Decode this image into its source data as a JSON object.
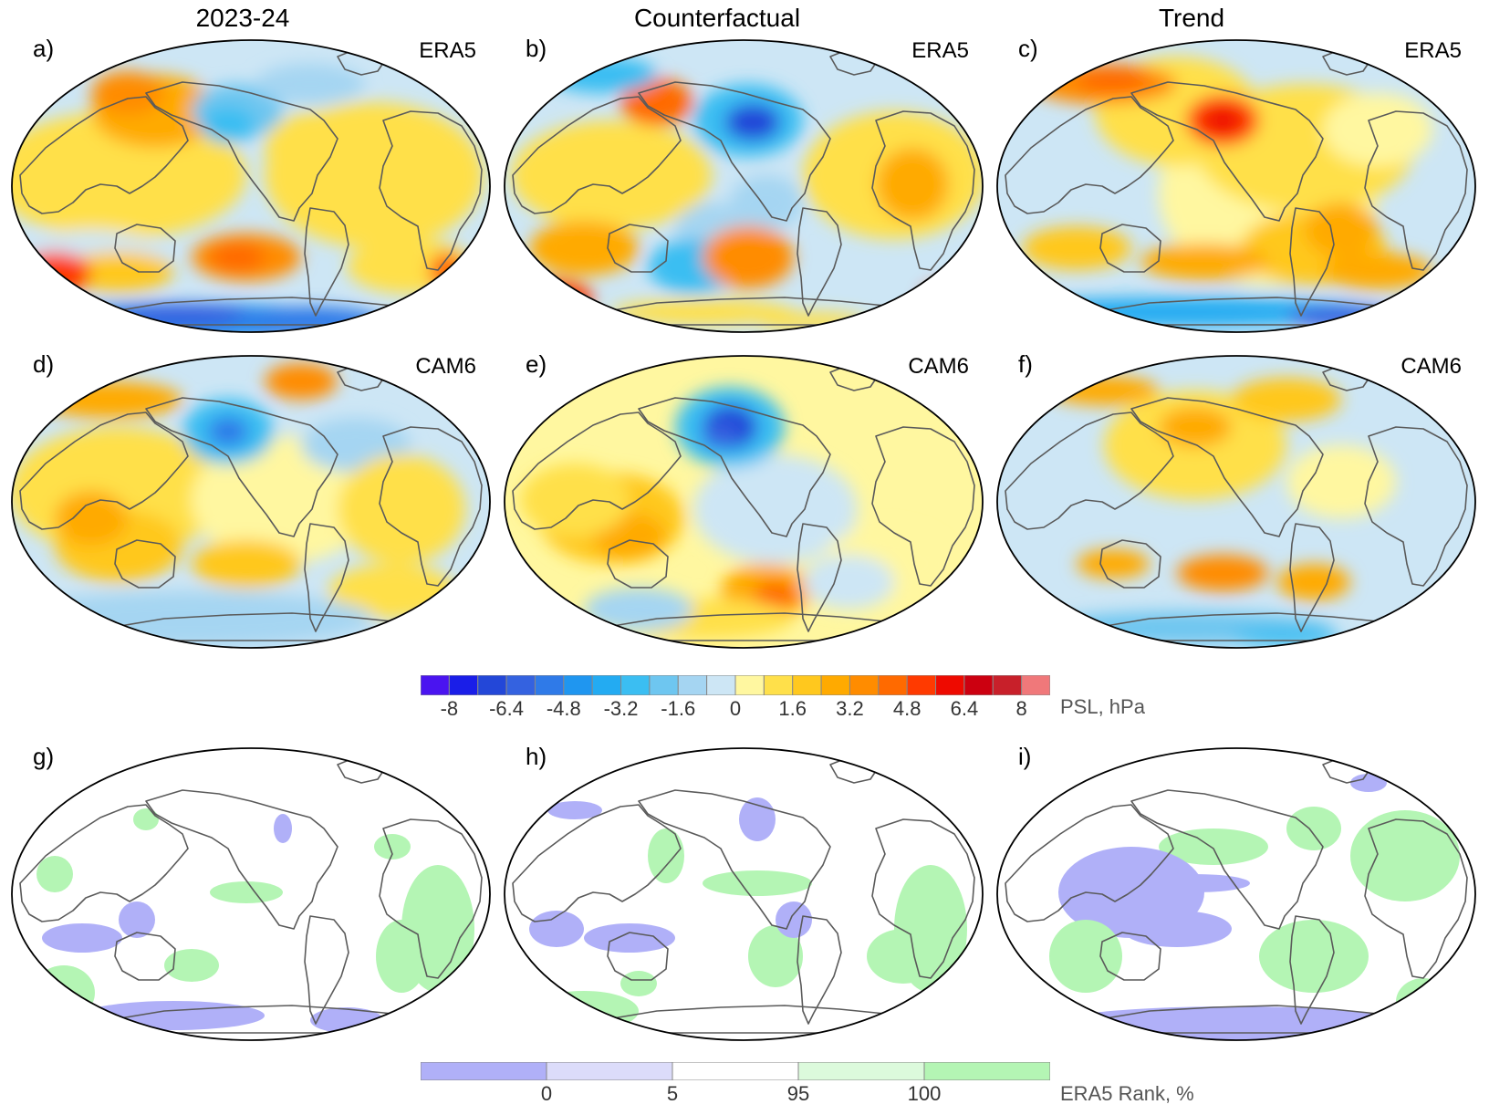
{
  "column_titles": [
    "2023-24",
    "Counterfactual",
    "Trend"
  ],
  "panels": [
    {
      "letter": "a)",
      "source": "ERA5",
      "type": "psl",
      "pattern": "era5-2324"
    },
    {
      "letter": "b)",
      "source": "ERA5",
      "type": "psl",
      "pattern": "era5-cf"
    },
    {
      "letter": "c)",
      "source": "ERA5",
      "type": "psl",
      "pattern": "era5-trend"
    },
    {
      "letter": "d)",
      "source": "CAM6",
      "type": "psl",
      "pattern": "cam6-2324"
    },
    {
      "letter": "e)",
      "source": "CAM6",
      "type": "psl",
      "pattern": "cam6-cf"
    },
    {
      "letter": "f)",
      "source": "CAM6",
      "type": "psl",
      "pattern": "cam6-trend"
    },
    {
      "letter": "g)",
      "source": "",
      "type": "rank",
      "pattern": "rank-2324"
    },
    {
      "letter": "h)",
      "source": "",
      "type": "rank",
      "pattern": "rank-cf"
    },
    {
      "letter": "i)",
      "source": "",
      "type": "rank",
      "pattern": "rank-trend"
    }
  ],
  "psl_colorbar": {
    "title": "PSL, hPa",
    "colors": [
      "#4a14f0",
      "#1a1ee8",
      "#2347d8",
      "#3462e0",
      "#2f7ae8",
      "#1f96f0",
      "#23abf2",
      "#3bbef2",
      "#6ec6f0",
      "#a5d5f2",
      "#cde6f5",
      "#fff7a0",
      "#ffe04a",
      "#ffc81e",
      "#ffaa00",
      "#ff8c00",
      "#ff6a00",
      "#ff3a00",
      "#ee0a00",
      "#cc0010",
      "#c8202a",
      "#f0787a"
    ],
    "tick_labels": [
      "-8",
      "-6.4",
      "-4.8",
      "-3.2",
      "-1.6",
      "0",
      "1.6",
      "3.2",
      "4.8",
      "6.4",
      "8"
    ]
  },
  "rank_colorbar": {
    "title": "ERA5 Rank, %",
    "colors": [
      "#b0b0f8",
      "#dcdcfa",
      "#ffffff",
      "#dcfadc",
      "#b4f5b4"
    ],
    "tick_labels": [
      "0",
      "5",
      "95",
      "100"
    ]
  }
}
